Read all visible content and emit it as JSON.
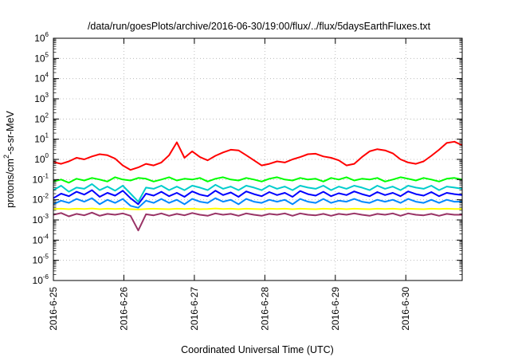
{
  "chart_data": {
    "type": "line",
    "title": "/data/run/goesPlots/archive/2016-06-30/19:00/flux/../flux/5daysEarthFluxes.txt",
    "xlabel": "Coordinated Universal Time (UTC)",
    "ylabel": {
      "base": "protons/cm",
      "sup": "2",
      "rest": "-s-sr-MeV"
    },
    "x_ticks": [
      "2016-6-25",
      "2016-6-26",
      "2016-6-27",
      "2016-6-28",
      "2016-6-29",
      "2016-6-30"
    ],
    "xlim_days": [
      0,
      5.8
    ],
    "y_scale": "log",
    "y_ticks": [
      "-6",
      "-5",
      "-4",
      "-3",
      "-2",
      "-1",
      "0",
      "1",
      "2",
      "3",
      "4",
      "5",
      "6"
    ],
    "ylim": [
      1e-06,
      1000000.0
    ],
    "grid": true,
    "series": [
      {
        "color": "#ff0000",
        "values": [
          0.75,
          0.6,
          0.8,
          1.2,
          1.0,
          1.4,
          1.8,
          1.6,
          1.1,
          0.5,
          0.3,
          0.4,
          0.6,
          0.5,
          0.7,
          1.6,
          7,
          1.2,
          2.5,
          1.3,
          0.9,
          1.5,
          2.2,
          3.0,
          2.8,
          1.6,
          0.9,
          0.5,
          0.6,
          0.8,
          0.7,
          1.0,
          1.3,
          1.8,
          1.9,
          1.4,
          1.2,
          0.9,
          0.5,
          0.6,
          1.3,
          2.5,
          3.2,
          2.8,
          2.0,
          1.0,
          0.7,
          0.6,
          0.8,
          1.5,
          3.0,
          6.5,
          7.5,
          5.0
        ]
      },
      {
        "color": "#00ff00",
        "values": [
          0.08,
          0.1,
          0.07,
          0.11,
          0.09,
          0.12,
          0.1,
          0.08,
          0.13,
          0.1,
          0.09,
          0.12,
          0.11,
          0.08,
          0.1,
          0.13,
          0.09,
          0.11,
          0.1,
          0.12,
          0.08,
          0.11,
          0.13,
          0.1,
          0.09,
          0.12,
          0.1,
          0.08,
          0.11,
          0.13,
          0.1,
          0.09,
          0.12,
          0.1,
          0.11,
          0.08,
          0.12,
          0.1,
          0.13,
          0.09,
          0.11,
          0.1,
          0.12,
          0.08,
          0.1,
          0.13,
          0.11,
          0.09,
          0.12,
          0.1,
          0.08,
          0.11,
          0.12,
          0.1
        ]
      },
      {
        "color": "#00cccc",
        "values": [
          0.03,
          0.05,
          0.025,
          0.04,
          0.035,
          0.06,
          0.03,
          0.045,
          0.028,
          0.05,
          0.02,
          0.008,
          0.04,
          0.035,
          0.05,
          0.03,
          0.045,
          0.03,
          0.05,
          0.04,
          0.03,
          0.055,
          0.035,
          0.045,
          0.03,
          0.05,
          0.04,
          0.03,
          0.05,
          0.035,
          0.045,
          0.03,
          0.05,
          0.04,
          0.035,
          0.05,
          0.03,
          0.045,
          0.035,
          0.05,
          0.04,
          0.03,
          0.05,
          0.035,
          0.045,
          0.03,
          0.05,
          0.04,
          0.035,
          0.05,
          0.03,
          0.045,
          0.04,
          0.035
        ]
      },
      {
        "color": "#0000ff",
        "values": [
          0.012,
          0.02,
          0.015,
          0.025,
          0.018,
          0.03,
          0.014,
          0.022,
          0.016,
          0.028,
          0.012,
          0.006,
          0.02,
          0.016,
          0.025,
          0.015,
          0.022,
          0.014,
          0.026,
          0.018,
          0.015,
          0.028,
          0.017,
          0.023,
          0.014,
          0.026,
          0.019,
          0.015,
          0.024,
          0.017,
          0.022,
          0.014,
          0.027,
          0.019,
          0.016,
          0.025,
          0.015,
          0.021,
          0.017,
          0.026,
          0.019,
          0.015,
          0.024,
          0.017,
          0.022,
          0.015,
          0.026,
          0.019,
          0.016,
          0.024,
          0.015,
          0.022,
          0.019,
          0.017
        ]
      },
      {
        "color": "#0088ff",
        "values": [
          0.006,
          0.009,
          0.007,
          0.011,
          0.008,
          0.012,
          0.006,
          0.01,
          0.007,
          0.011,
          0.005,
          0.004,
          0.009,
          0.007,
          0.011,
          0.007,
          0.01,
          0.006,
          0.011,
          0.008,
          0.007,
          0.012,
          0.008,
          0.01,
          0.006,
          0.011,
          0.008,
          0.007,
          0.01,
          0.008,
          0.01,
          0.006,
          0.011,
          0.008,
          0.007,
          0.011,
          0.007,
          0.009,
          0.008,
          0.011,
          0.008,
          0.007,
          0.01,
          0.008,
          0.01,
          0.007,
          0.011,
          0.008,
          0.007,
          0.01,
          0.007,
          0.01,
          0.008,
          0.008
        ]
      },
      {
        "color": "#ffff00",
        "values": [
          0.0035,
          0.0036,
          0.0034,
          0.0036,
          0.0035,
          0.0037,
          0.0034,
          0.0036,
          0.0035,
          0.0036,
          0.0034,
          0.0033,
          0.0035,
          0.0036,
          0.0035,
          0.0034,
          0.0036,
          0.0035,
          0.0036,
          0.0034,
          0.0035,
          0.0037,
          0.0035,
          0.0036,
          0.0034,
          0.0036,
          0.0035,
          0.0034,
          0.0036,
          0.0035,
          0.0036,
          0.0034,
          0.0036,
          0.0035,
          0.0034,
          0.0036,
          0.0035,
          0.0036,
          0.0034,
          0.0036,
          0.0035,
          0.0034,
          0.0036,
          0.0035,
          0.0036,
          0.0034,
          0.0036,
          0.0035,
          0.0034,
          0.0036,
          0.0035,
          0.0036,
          0.0035,
          0.0035
        ]
      },
      {
        "color": "#993366",
        "values": [
          0.0018,
          0.0022,
          0.0015,
          0.002,
          0.0017,
          0.0023,
          0.0016,
          0.002,
          0.0018,
          0.0021,
          0.0016,
          0.0003,
          0.0019,
          0.0017,
          0.0021,
          0.0016,
          0.002,
          0.0017,
          0.0022,
          0.0018,
          0.0016,
          0.0021,
          0.0018,
          0.002,
          0.0016,
          0.0021,
          0.0018,
          0.0016,
          0.002,
          0.0018,
          0.0021,
          0.0016,
          0.0021,
          0.0018,
          0.0017,
          0.002,
          0.0016,
          0.002,
          0.0018,
          0.0021,
          0.0018,
          0.0016,
          0.002,
          0.0018,
          0.0021,
          0.0016,
          0.0021,
          0.0018,
          0.0017,
          0.002,
          0.0016,
          0.002,
          0.0018,
          0.0018
        ]
      }
    ]
  }
}
